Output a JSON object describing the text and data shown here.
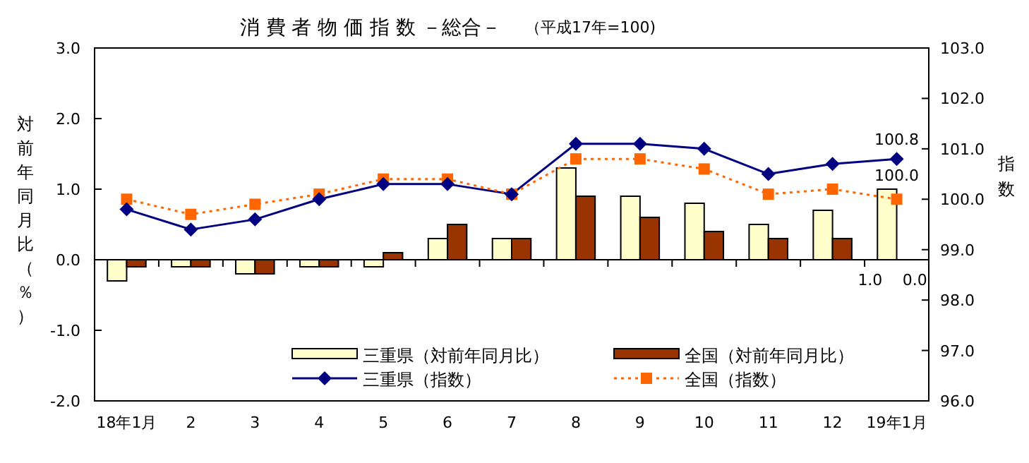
{
  "chart_data": {
    "type": "bar",
    "title": "消 費 者 物 価 指 数  －総合－",
    "subtitle": "（平成17年=100)",
    "ylabel": "対前年同月比（％）",
    "y2label": "指数",
    "categories": [
      "18年1月",
      "2",
      "3",
      "4",
      "5",
      "6",
      "7",
      "8",
      "9",
      "10",
      "11",
      "12",
      "19年1月"
    ],
    "ylim": [
      -2,
      3
    ],
    "yticks": [
      {
        "value": -2,
        "label": "-2.0"
      },
      {
        "value": -1,
        "label": "-1.0"
      },
      {
        "value": 0,
        "label": "0.0"
      },
      {
        "value": 1,
        "label": "1.0"
      },
      {
        "value": 2,
        "label": "2.0"
      },
      {
        "value": 3,
        "label": "3.0"
      }
    ],
    "y2lim": [
      96,
      103
    ],
    "y2ticks": [
      {
        "value": 96,
        "label": "96.0"
      },
      {
        "value": 97,
        "label": "97.0"
      },
      {
        "value": 98,
        "label": "98.0"
      },
      {
        "value": 99,
        "label": "99.0"
      },
      {
        "value": 100,
        "label": "100.0"
      },
      {
        "value": 101,
        "label": "101.0"
      },
      {
        "value": 102,
        "label": "102.0"
      },
      {
        "value": 103,
        "label": "103.0"
      }
    ],
    "legend": "bottom",
    "series": [
      {
        "name": "三重県（対前年同月比）",
        "color": "#ffffcc",
        "values": [
          -0.3,
          -0.1,
          -0.2,
          -0.1,
          -0.1,
          0.3,
          0.3,
          1.3,
          0.9,
          0.8,
          0.5,
          0.7,
          1.0
        ],
        "value_labels": [
          null,
          null,
          null,
          null,
          null,
          null,
          null,
          null,
          null,
          null,
          null,
          null,
          "1.0"
        ]
      },
      {
        "name": "全国（対前年同月比）",
        "color": "#993300",
        "values": [
          -0.1,
          -0.1,
          -0.2,
          -0.1,
          0.1,
          0.5,
          0.3,
          0.9,
          0.6,
          0.4,
          0.3,
          0.3,
          0.0
        ],
        "value_labels": [
          null,
          null,
          null,
          null,
          null,
          null,
          null,
          null,
          null,
          null,
          null,
          null,
          "0.0"
        ]
      },
      {
        "name": "三重県（指数）",
        "type": "line",
        "axis": "y2",
        "color": "#000080",
        "marker": "diamond",
        "line_style": "solid",
        "values": [
          99.8,
          99.4,
          99.6,
          100.0,
          100.3,
          100.3,
          100.1,
          101.1,
          101.1,
          101.0,
          100.5,
          100.7,
          100.8
        ],
        "value_labels": [
          null,
          null,
          null,
          null,
          null,
          null,
          null,
          null,
          null,
          null,
          null,
          null,
          "100.8"
        ]
      },
      {
        "name": "全国（指数）",
        "type": "line",
        "axis": "y2",
        "color": "#ff6600",
        "marker": "square",
        "line_style": "dotted",
        "values": [
          100.0,
          99.7,
          99.9,
          100.1,
          100.4,
          100.4,
          100.1,
          100.8,
          100.8,
          100.6,
          100.1,
          100.2,
          100.0
        ],
        "value_labels": [
          null,
          null,
          null,
          null,
          null,
          null,
          null,
          null,
          null,
          null,
          null,
          null,
          "100.0"
        ]
      }
    ]
  }
}
